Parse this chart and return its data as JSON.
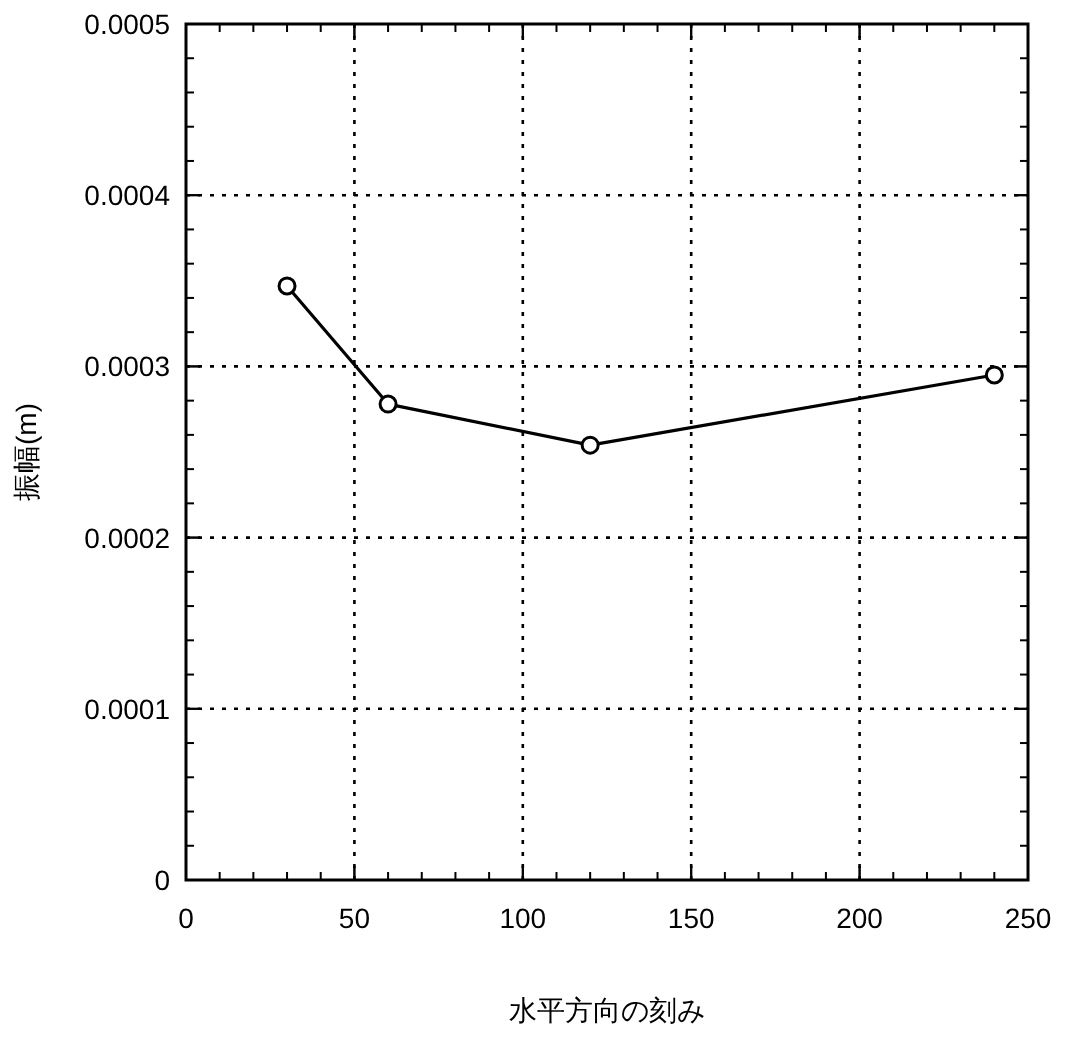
{
  "chart_data": {
    "type": "line",
    "xlabel": "水平方向の刻み",
    "ylabel": "振幅(m)",
    "x": [
      30,
      60,
      120,
      240
    ],
    "series": [
      {
        "color": "#000000",
        "values": [
          0.000347,
          0.000278,
          0.000254,
          0.000295
        ]
      }
    ],
    "xlim": [
      0,
      250
    ],
    "xticks": [
      0,
      50,
      100,
      150,
      200,
      250
    ],
    "ylim": [
      0,
      0.0005
    ],
    "yticks": [
      0,
      0.0001,
      0.0002,
      0.0003,
      0.0004,
      0.0005
    ],
    "grid": true,
    "marker": "circle",
    "line_style": "solid"
  }
}
